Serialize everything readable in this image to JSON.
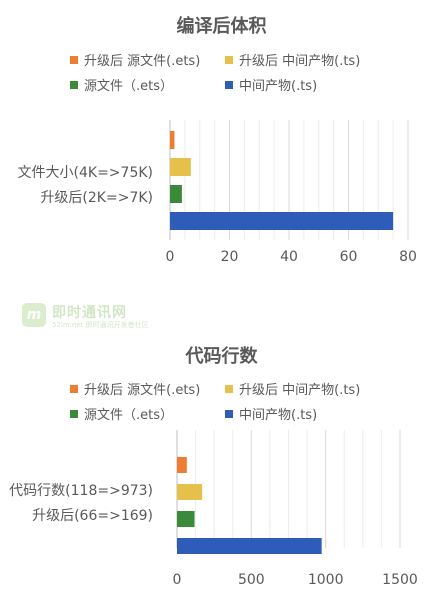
{
  "chart_data": [
    {
      "type": "bar",
      "orientation": "horizontal",
      "title": "编译后体积",
      "category_labels": [
        "文件大小(4K=>75K)",
        "升级后(2K=>7K)"
      ],
      "series": [
        {
          "name": "升级后 源文件(.ets)",
          "color": "#ed7d31",
          "value": 1.5
        },
        {
          "name": "升级后 中间产物(.ts)",
          "color": "#e5c04b",
          "value": 7
        },
        {
          "name": "源文件（.ets）",
          "color": "#3a8a3a",
          "value": 4
        },
        {
          "name": "中间产物(.ts)",
          "color": "#2e5cb8",
          "value": 75
        }
      ],
      "xlim": [
        0,
        80
      ],
      "ticks": [
        "0",
        "20",
        "40",
        "60",
        "80"
      ],
      "grid": true,
      "legend_position": "top"
    },
    {
      "type": "bar",
      "orientation": "horizontal",
      "title": "代码行数",
      "category_labels": [
        "代码行数(118=>973)",
        "升级后(66=>169)"
      ],
      "series": [
        {
          "name": "升级后 源文件(.ets)",
          "color": "#ed7d31",
          "value": 66
        },
        {
          "name": "升级后 中间产物(.ts)",
          "color": "#e5c04b",
          "value": 169
        },
        {
          "name": "源文件（.ets）",
          "color": "#3a8a3a",
          "value": 118
        },
        {
          "name": "中间产物(.ts)",
          "color": "#2e5cb8",
          "value": 973
        }
      ],
      "xlim": [
        0,
        1500
      ],
      "ticks": [
        "0",
        "500",
        "1000",
        "1500"
      ],
      "grid": true,
      "legend_position": "top"
    }
  ],
  "watermark": {
    "logo_letter": "m",
    "text": "即时通讯网",
    "subtext": "52im.net 即时通讯开发者社区"
  }
}
